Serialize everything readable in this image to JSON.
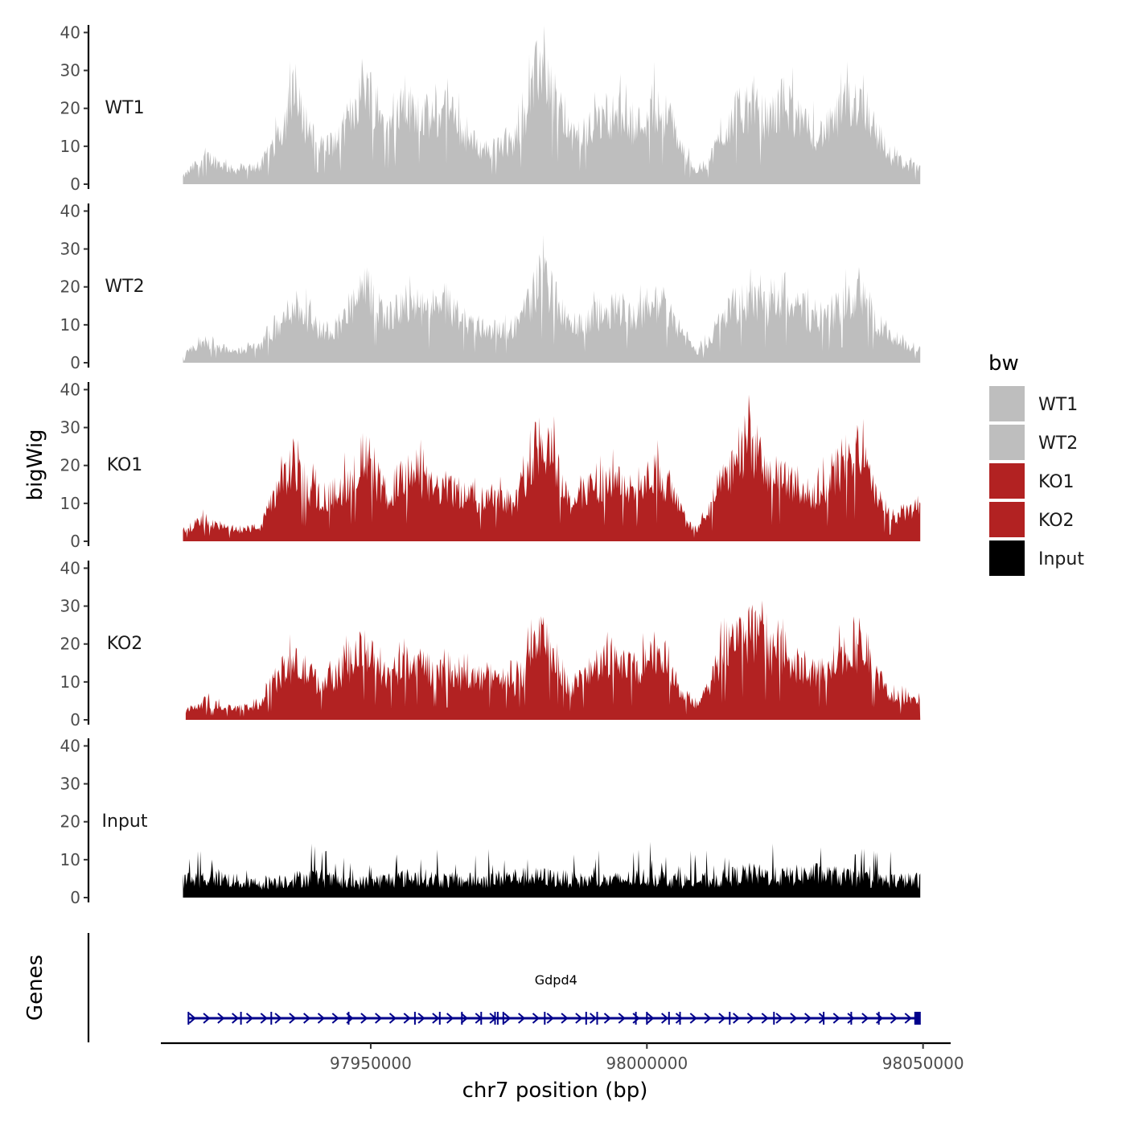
{
  "chart_data": {
    "type": "area",
    "chromosome": "chr7",
    "xlabel": "chr7 position (bp)",
    "ylabel": "bigWig",
    "genes_label": "Genes",
    "xlim": [
      97912000,
      98055000
    ],
    "signal_range": [
      97916000,
      98049500
    ],
    "x_ticks": [
      97950000,
      98000000,
      98050000
    ],
    "x_tick_labels": [
      "97950000",
      "98000000",
      "98050000"
    ],
    "ylim": [
      0,
      42
    ],
    "y_ticks": [
      0,
      10,
      20,
      30,
      40
    ],
    "y_tick_labels": [
      "0",
      "10",
      "20",
      "30",
      "40"
    ],
    "legend": {
      "title": "bw",
      "entries": [
        {
          "label": "WT1",
          "color": "#BEBEBE"
        },
        {
          "label": "WT2",
          "color": "#BEBEBE"
        },
        {
          "label": "KO1",
          "color": "#B22222"
        },
        {
          "label": "KO2",
          "color": "#B22222"
        },
        {
          "label": "Input",
          "color": "#000000"
        }
      ]
    },
    "series": [
      {
        "name": "WT1",
        "color": "#BEBEBE",
        "x": [
          97916000,
          97920000,
          97925000,
          97930000,
          97933500,
          97936000,
          97938000,
          97941000,
          97944000,
          97946500,
          97949000,
          97951000,
          97953000,
          97955000,
          97958000,
          97961000,
          97964000,
          97967000,
          97970000,
          97973000,
          97976000,
          97979000,
          97981000,
          97983000,
          97986000,
          97989000,
          97992000,
          97995000,
          97998000,
          98001000,
          98004000,
          98007000,
          98009000,
          98011000,
          98013000,
          98016000,
          98019000,
          98022000,
          98025000,
          98028000,
          98031000,
          98033000,
          98036000,
          98039000,
          98041500,
          98044000,
          98046500,
          98049500
        ],
        "values": [
          2,
          8,
          4,
          5,
          14,
          25,
          18,
          11,
          12,
          20,
          30,
          22,
          16,
          20,
          22,
          18,
          21,
          14,
          10,
          10,
          12,
          25,
          36,
          27,
          13,
          15,
          18,
          20,
          16,
          22,
          19,
          8,
          4,
          6,
          12,
          20,
          22,
          18,
          24,
          17,
          14,
          16,
          22,
          25,
          15,
          8,
          6,
          4
        ]
      },
      {
        "name": "WT2",
        "color": "#BEBEBE",
        "x": [
          97916000,
          97920000,
          97925000,
          97930000,
          97933500,
          97936000,
          97938000,
          97941000,
          97944000,
          97946500,
          97949000,
          97951000,
          97953000,
          97955000,
          97958000,
          97961000,
          97964000,
          97967000,
          97970000,
          97973000,
          97976000,
          97979000,
          97981000,
          97983000,
          97986000,
          97989000,
          97992000,
          97995000,
          97998000,
          98001000,
          98004000,
          98007000,
          98009000,
          98011000,
          98013000,
          98016000,
          98019000,
          98022000,
          98025000,
          98028000,
          98031000,
          98033000,
          98036000,
          98039000,
          98041500,
          98044000,
          98046500,
          98049500
        ],
        "values": [
          2,
          6,
          3,
          5,
          10,
          17,
          14,
          9,
          10,
          15,
          21,
          17,
          13,
          15,
          16,
          14,
          16,
          12,
          10,
          9,
          10,
          18,
          25,
          19,
          10,
          12,
          14,
          16,
          13,
          17,
          15,
          7,
          3,
          6,
          11,
          16,
          18,
          15,
          19,
          14,
          12,
          13,
          17,
          19,
          12,
          7,
          5,
          4
        ]
      },
      {
        "name": "KO1",
        "color": "#B22222",
        "x": [
          97916000,
          97920000,
          97925000,
          97930000,
          97933500,
          97936000,
          97938000,
          97941000,
          97944000,
          97946500,
          97949000,
          97951000,
          97953000,
          97955000,
          97958000,
          97961000,
          97964000,
          97967000,
          97970000,
          97973000,
          97976000,
          97979000,
          97981000,
          97983000,
          97986000,
          97989000,
          97992000,
          97995000,
          97998000,
          98001000,
          98004000,
          98007000,
          98009000,
          98011000,
          98013000,
          98016000,
          98019000,
          98022000,
          98025000,
          98028000,
          98031000,
          98033000,
          98036000,
          98039000,
          98041500,
          98044000,
          98046500,
          98049500
        ],
        "values": [
          3,
          6,
          3,
          4,
          15,
          22,
          16,
          12,
          14,
          18,
          25,
          17,
          13,
          17,
          20,
          15,
          15,
          13,
          12,
          14,
          10,
          23,
          30,
          24,
          11,
          14,
          17,
          16,
          15,
          20,
          15,
          6,
          3,
          8,
          15,
          22,
          28,
          18,
          19,
          13,
          14,
          16,
          24,
          23,
          13,
          7,
          8,
          10
        ]
      },
      {
        "name": "KO2",
        "color": "#B22222",
        "x": [
          97916500,
          97920000,
          97925000,
          97930000,
          97933500,
          97936000,
          97938000,
          97941000,
          97944000,
          97946500,
          97949000,
          97951000,
          97953000,
          97955000,
          97958000,
          97961000,
          97964000,
          97967000,
          97970000,
          97973000,
          97976000,
          97979000,
          97981000,
          97983000,
          97986000,
          97989000,
          97992000,
          97995000,
          97998000,
          98001000,
          98004000,
          98007000,
          98009000,
          98011000,
          98013000,
          98016000,
          98019000,
          98022000,
          98025000,
          98028000,
          98031000,
          98033000,
          98036000,
          98039000,
          98041500,
          98044000,
          98046500,
          98049500
        ],
        "values": [
          2,
          5,
          3,
          4,
          13,
          16,
          14,
          10,
          13,
          16,
          21,
          15,
          12,
          14,
          16,
          14,
          13,
          12,
          12,
          13,
          10,
          18,
          23,
          19,
          9,
          13,
          16,
          16,
          14,
          20,
          16,
          6,
          4,
          8,
          17,
          23,
          25,
          19,
          19,
          14,
          13,
          15,
          20,
          20,
          12,
          7,
          6,
          6
        ]
      },
      {
        "name": "Input",
        "color": "#000000",
        "x": [
          97916000,
          97922000,
          97928000,
          97934000,
          97940000,
          97946000,
          97952000,
          97958000,
          97964000,
          97970000,
          97976000,
          97982000,
          97988000,
          97994000,
          98000000,
          98006000,
          98012000,
          98018000,
          98024000,
          98030000,
          98036000,
          98042000,
          98049500
        ],
        "values": [
          5,
          6,
          4,
          5,
          6,
          4,
          5,
          6,
          5,
          5,
          6,
          6,
          5,
          5,
          6,
          5,
          5,
          7,
          6,
          7,
          6,
          5,
          5
        ]
      }
    ],
    "gene": {
      "name": "Gdpd4",
      "start": 97917000,
      "end": 98049500,
      "strand": "+",
      "color": "#00008B",
      "exons": [
        97917000,
        97926500,
        97932000,
        97946000,
        97958000,
        97962500,
        97966500,
        97970000,
        97972500,
        97973000,
        97974000,
        97981500,
        97989000,
        97991000,
        97998000,
        98000000,
        98004000,
        98006000,
        98015000,
        98023000,
        98032000,
        98037000,
        98042000,
        98049000
      ]
    }
  }
}
